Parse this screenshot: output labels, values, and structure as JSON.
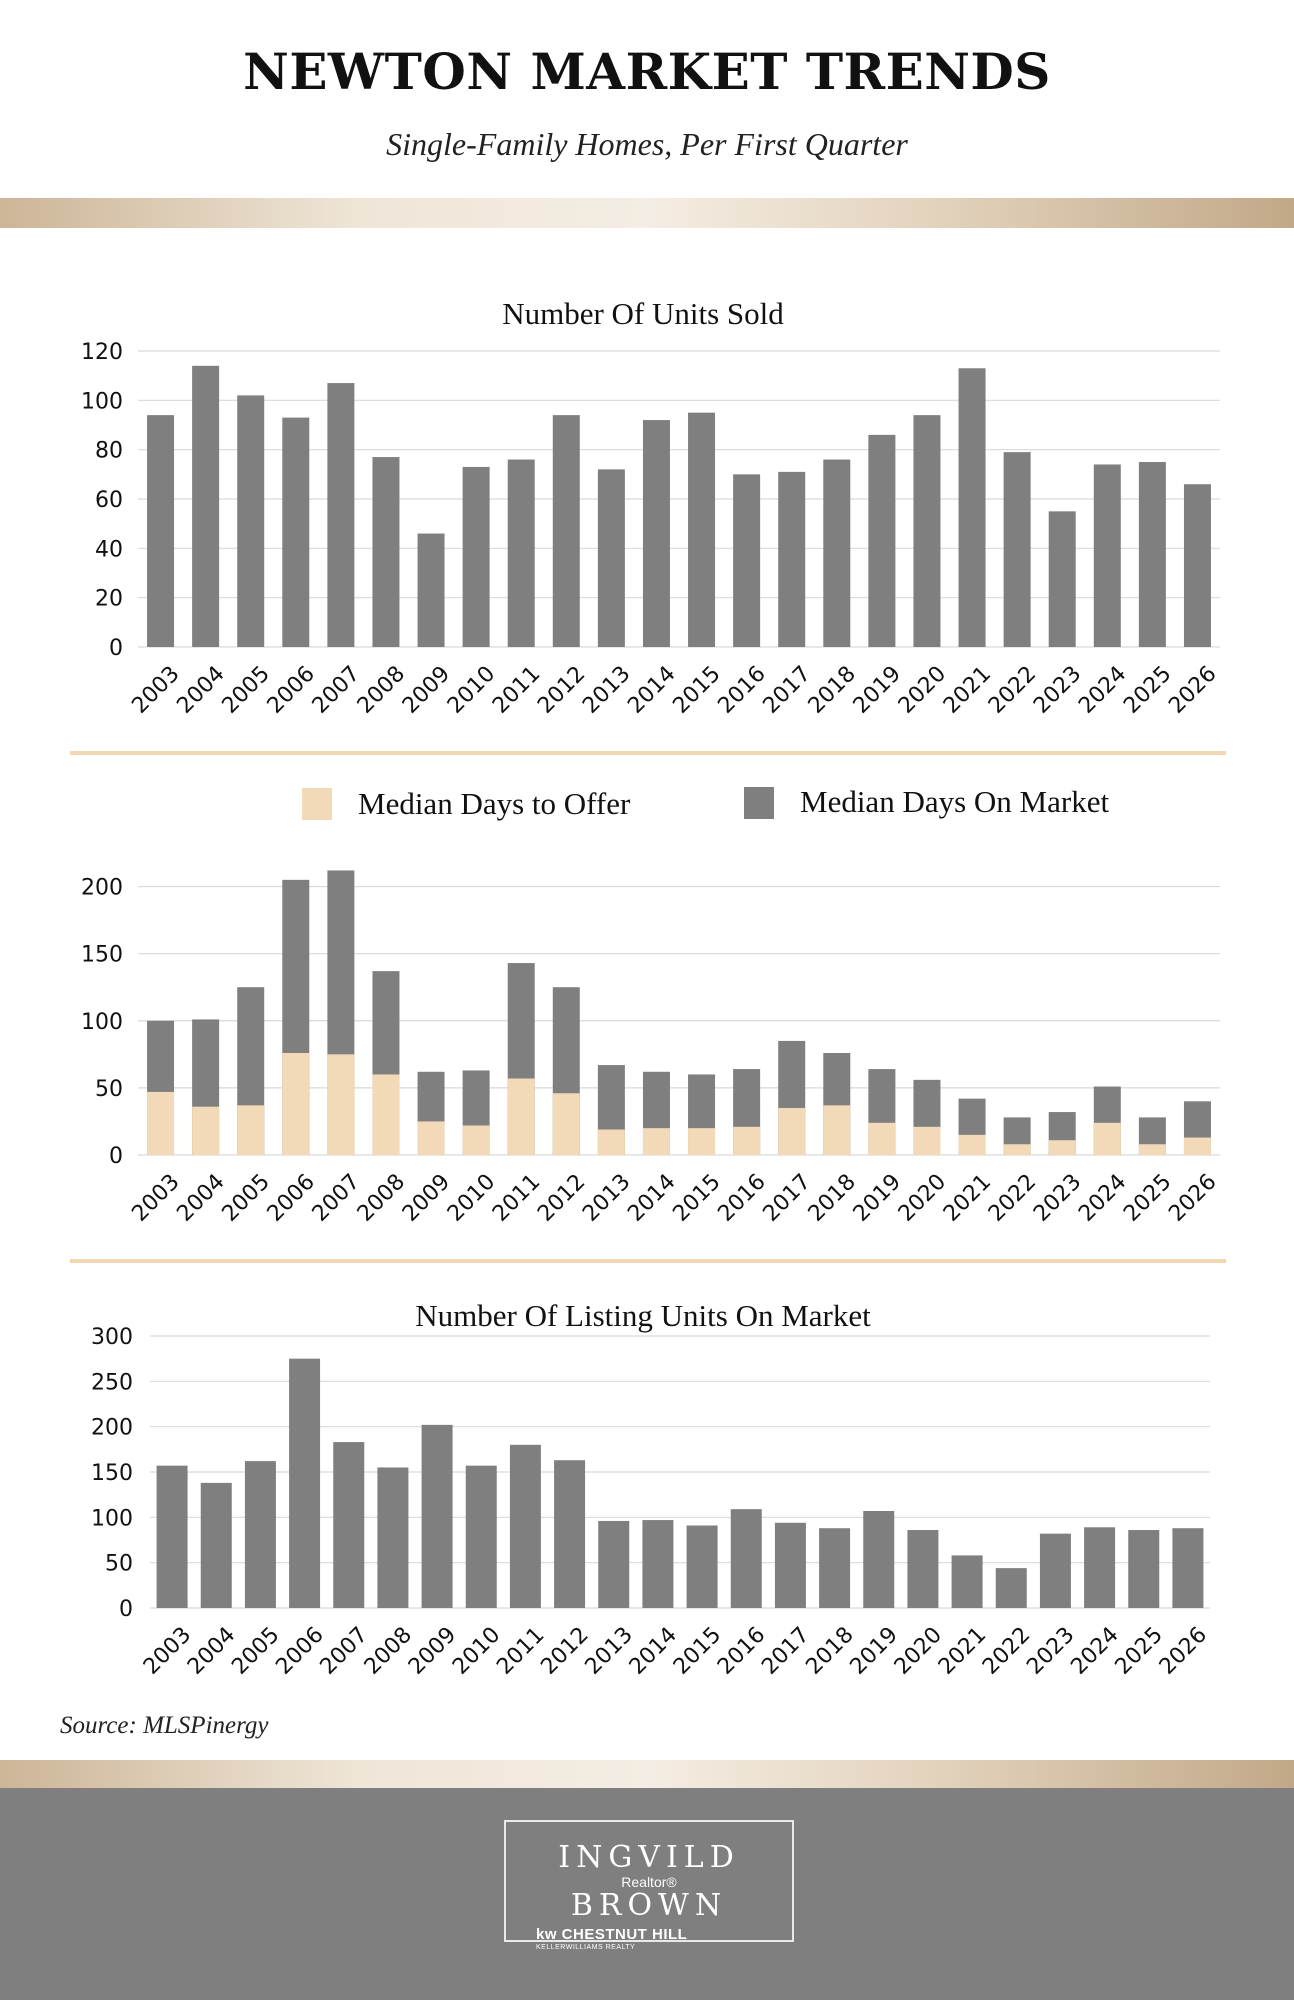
{
  "header": {
    "title": "NEWTON MARKET TRENDS",
    "subtitle": "Single-Family Homes, Per First Quarter"
  },
  "colors": {
    "bar": "#7f7f7f",
    "offer": "#f2d9b8",
    "grid": "#d9d9d9",
    "separator": "#f1d7b2"
  },
  "chart_data": [
    {
      "type": "bar",
      "title": "Number Of Units Sold",
      "categories": [
        "2003",
        "2004",
        "2005",
        "2006",
        "2007",
        "2008",
        "2009",
        "2010",
        "2011",
        "2012",
        "2013",
        "2014",
        "2015",
        "2016",
        "2017",
        "2018",
        "2019",
        "2020",
        "2021",
        "2022",
        "2023",
        "2024",
        "2025",
        "2026"
      ],
      "values": [
        94,
        114,
        102,
        93,
        107,
        77,
        46,
        73,
        76,
        94,
        72,
        92,
        95,
        70,
        71,
        76,
        86,
        94,
        113,
        79,
        55,
        74,
        75,
        66
      ],
      "ylim": [
        0,
        120
      ],
      "yticks": [
        0,
        20,
        40,
        60,
        80,
        100,
        120
      ],
      "grid": true
    },
    {
      "type": "bar",
      "title": "",
      "stacked": "overlay",
      "categories": [
        "2003",
        "2004",
        "2005",
        "2006",
        "2007",
        "2008",
        "2009",
        "2010",
        "2011",
        "2012",
        "2013",
        "2014",
        "2015",
        "2016",
        "2017",
        "2018",
        "2019",
        "2020",
        "2021",
        "2022",
        "2023",
        "2024",
        "2025",
        "2026"
      ],
      "series": [
        {
          "name": "Median Days On Market",
          "values": [
            100,
            101,
            125,
            205,
            212,
            137,
            62,
            63,
            143,
            125,
            67,
            62,
            60,
            64,
            85,
            76,
            64,
            56,
            42,
            28,
            32,
            51,
            28,
            40
          ]
        },
        {
          "name": "Median Days to Offer",
          "values": [
            47,
            36,
            37,
            76,
            75,
            60,
            25,
            22,
            57,
            46,
            19,
            20,
            20,
            21,
            35,
            37,
            24,
            21,
            15,
            8,
            11,
            24,
            8,
            13
          ]
        }
      ],
      "legend_position": "top",
      "ylim": [
        0,
        225
      ],
      "yticks": [
        0,
        50,
        100,
        150,
        200
      ],
      "grid": true
    },
    {
      "type": "bar",
      "title": "Number Of Listing Units On Market",
      "categories": [
        "2003",
        "2004",
        "2005",
        "2006",
        "2007",
        "2008",
        "2009",
        "2010",
        "2011",
        "2012",
        "2013",
        "2014",
        "2015",
        "2016",
        "2017",
        "2018",
        "2019",
        "2020",
        "2021",
        "2022",
        "2023",
        "2024",
        "2025",
        "2026"
      ],
      "values": [
        157,
        138,
        162,
        275,
        183,
        155,
        202,
        157,
        180,
        163,
        96,
        97,
        91,
        109,
        94,
        88,
        107,
        86,
        58,
        44,
        82,
        89,
        86,
        88
      ],
      "ylim": [
        0,
        300
      ],
      "yticks": [
        0,
        50,
        100,
        150,
        200,
        250,
        300
      ],
      "grid": true
    }
  ],
  "source": "Source: MLSPinergy",
  "footer": {
    "name_first": "INGVILD",
    "realtor": "Realtor®",
    "name_last": "BROWN",
    "brokerage": "kw CHESTNUT HILL",
    "brokerage_sub": "KELLERWILLIAMS REALTY"
  }
}
